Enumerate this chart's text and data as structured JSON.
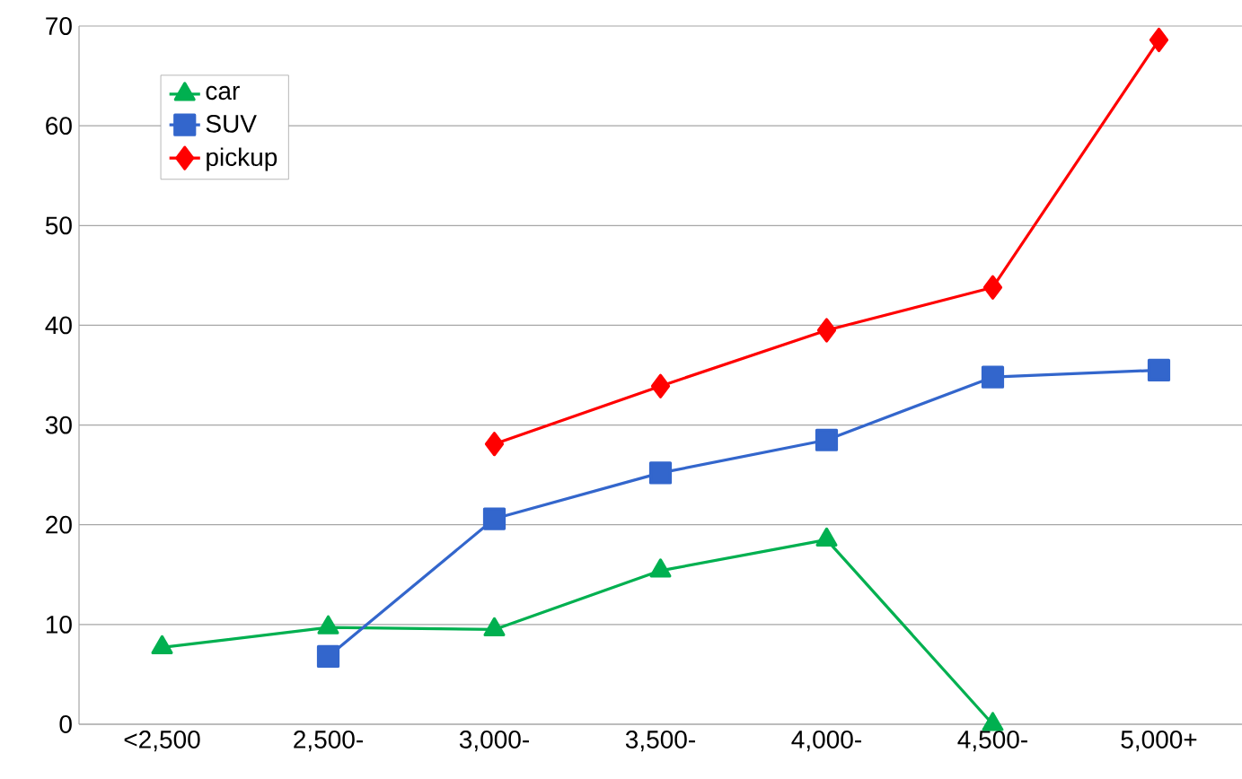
{
  "chart_data": {
    "type": "line",
    "categories": [
      "<2,500",
      "2,500-",
      "3,000-",
      "3,500-",
      "4,000-",
      "4,500-",
      "5,000+"
    ],
    "series": [
      {
        "name": "car",
        "color": "#00b050",
        "marker": "triangle",
        "values": [
          7.7,
          9.7,
          9.5,
          15.4,
          18.5,
          0,
          null
        ]
      },
      {
        "name": "SUV",
        "color": "#3366cc",
        "marker": "square",
        "values": [
          null,
          6.8,
          20.6,
          25.2,
          28.5,
          34.8,
          35.5
        ]
      },
      {
        "name": "pickup",
        "color": "#ff0000",
        "marker": "diamond",
        "values": [
          null,
          null,
          28.1,
          33.9,
          39.5,
          43.8,
          68.6
        ]
      }
    ],
    "ylim": [
      0,
      70
    ],
    "yticks": [
      0,
      10,
      20,
      30,
      40,
      50,
      60,
      70
    ],
    "grid": "y",
    "legend": "top left"
  }
}
